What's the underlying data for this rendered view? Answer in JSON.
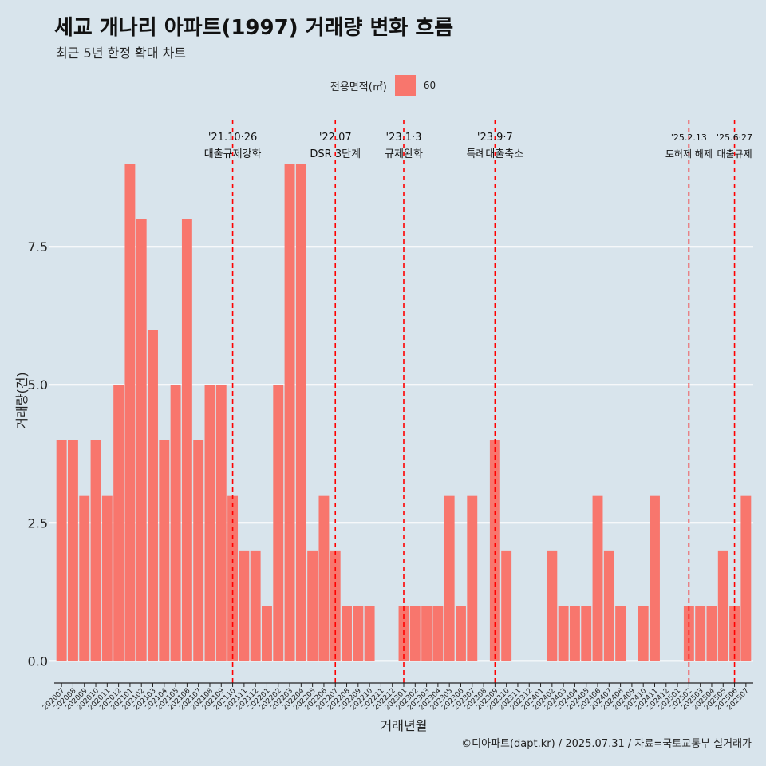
{
  "title": "세교 개나리 아파트(1997) 거래량 변화 흐름",
  "subtitle": "최근 5년 한정 확대 차트",
  "legend": {
    "title": "전용면적(㎡)",
    "label": "60"
  },
  "caption": "©디아파트(dapt.kr) / 2025.07.31 / 자료=국토교통부 실거래가",
  "colors": {
    "background": "#d8e4ec",
    "bar": "#f8766d",
    "vline": "#ff0000",
    "grid": "#ffffff"
  },
  "chart_data": {
    "type": "bar",
    "xlabel": "거래년월",
    "ylabel": "거래량(건)",
    "ylim": [
      -0.4,
      9.8
    ],
    "yticks": [
      "0.0",
      "2.5",
      "5.0",
      "7.5"
    ],
    "ytick_values": [
      0,
      2.5,
      5,
      7.5
    ],
    "grid": true,
    "legend_position": "top",
    "categories": [
      "202007",
      "202008",
      "202009",
      "202010",
      "202011",
      "202012",
      "202101",
      "202102",
      "202103",
      "202104",
      "202105",
      "202106",
      "202107",
      "202108",
      "202109",
      "202110",
      "202111",
      "202112",
      "202201",
      "202202",
      "202203",
      "202204",
      "202205",
      "202206",
      "202207",
      "202208",
      "202209",
      "202210",
      "202211",
      "202212",
      "202301",
      "202302",
      "202303",
      "202304",
      "202305",
      "202306",
      "202307",
      "202308",
      "202309",
      "202310",
      "202311",
      "202312",
      "202401",
      "202402",
      "202403",
      "202404",
      "202405",
      "202406",
      "202407",
      "202408",
      "202409",
      "202410",
      "202411",
      "202412",
      "202501",
      "202502",
      "202503",
      "202504",
      "202505",
      "202506",
      "202507"
    ],
    "series": [
      {
        "name": "60",
        "values": [
          4,
          4,
          3,
          4,
          3,
          5,
          9,
          8,
          6,
          4,
          5,
          8,
          4,
          5,
          5,
          3,
          2,
          2,
          1,
          5,
          9,
          9,
          2,
          3,
          2,
          1,
          1,
          1,
          0,
          0,
          1,
          1,
          1,
          1,
          3,
          1,
          3,
          0,
          4,
          2,
          0,
          0,
          0,
          2,
          1,
          1,
          1,
          3,
          2,
          1,
          0,
          1,
          3,
          0,
          0,
          1,
          1,
          1,
          2,
          1,
          3
        ]
      }
    ],
    "annotations": [
      {
        "date": "'21.10·26",
        "label": "대출규제강화",
        "at": 15.5
      },
      {
        "date": "'22.07",
        "label": "DSR 3단계",
        "at": 24.5
      },
      {
        "date": "'23.1·3",
        "label": "규제완화",
        "at": 30.5
      },
      {
        "date": "'23.9·7",
        "label": "특례대출축소",
        "at": 38.5
      },
      {
        "date": "'25.2.13",
        "label": "토허제 해제",
        "at": 55.5
      },
      {
        "date": "'25.6·27",
        "label": "대출규제",
        "at": 59.5
      }
    ]
  }
}
